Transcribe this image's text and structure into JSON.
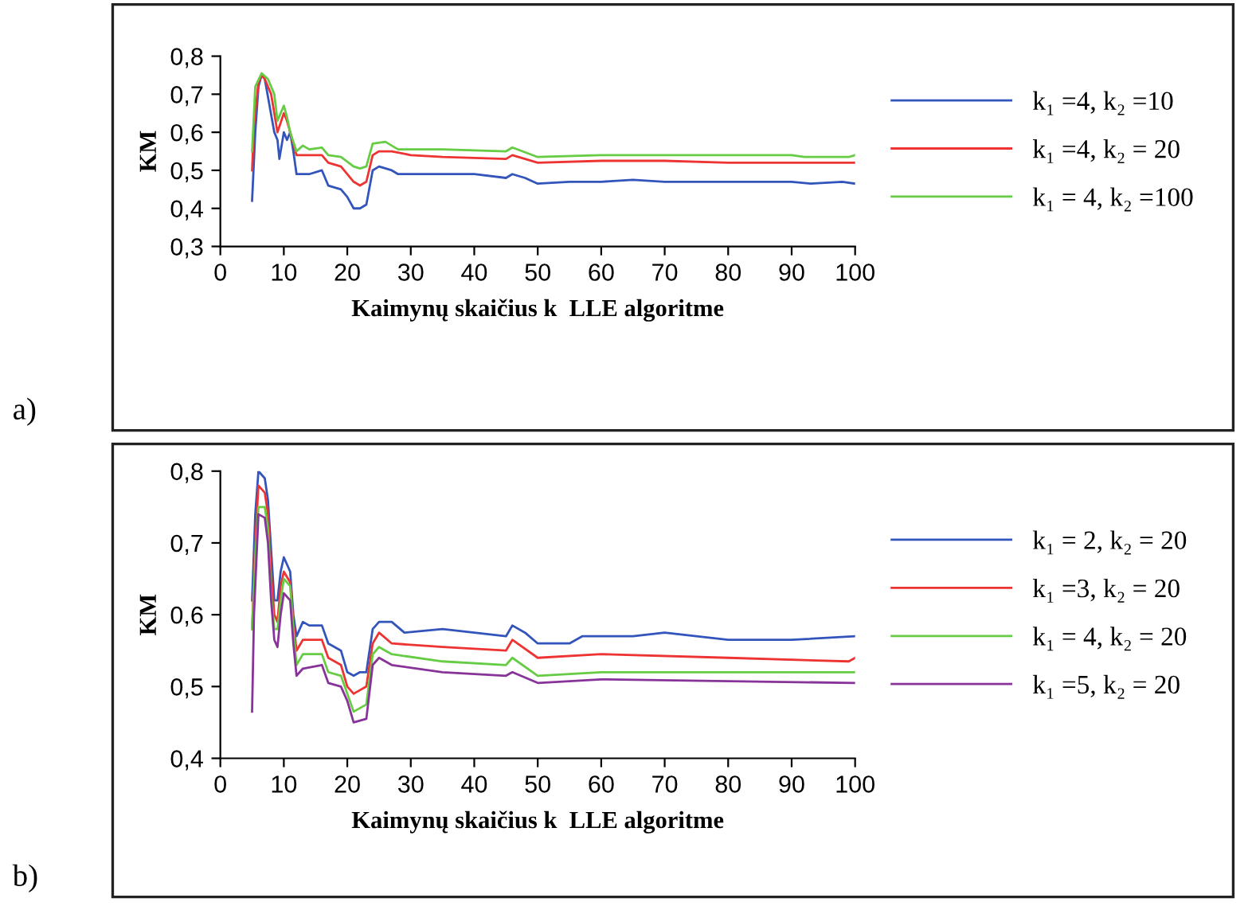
{
  "chart_data": [
    {
      "type": "line",
      "xlabel": "Kaimynų skaičius k  LLE algoritme",
      "ylabel": "KM",
      "annotations": [
        "a)"
      ],
      "legend": "right",
      "grid": false,
      "xlim": [
        0,
        100
      ],
      "xticks": [
        0,
        10,
        20,
        30,
        40,
        50,
        60,
        70,
        80,
        90,
        100
      ],
      "ylim": [
        0.3,
        0.8
      ],
      "yticks": [
        {
          "value": 0.3,
          "label": "0,3"
        },
        {
          "value": 0.4,
          "label": "0,4"
        },
        {
          "value": 0.5,
          "label": "0,5"
        },
        {
          "value": 0.6,
          "label": "0,6"
        },
        {
          "value": 0.7,
          "label": "0,7"
        },
        {
          "value": 0.8,
          "label": "0,8"
        }
      ],
      "series": [
        {
          "name": "k₁ =4, k₂ =10",
          "color": "#3355bb",
          "x": [
            5,
            5.5,
            6,
            6.5,
            7,
            8.5,
            9,
            9.3,
            10,
            10.5,
            11,
            11.5,
            12,
            13,
            14,
            16,
            17,
            19,
            20,
            21,
            22,
            23,
            24,
            25,
            27,
            28,
            35,
            40,
            45,
            46,
            48,
            50,
            55,
            60,
            65,
            70,
            80,
            90,
            93,
            98,
            100
          ],
          "values": [
            0.42,
            0.6,
            0.72,
            0.75,
            0.74,
            0.6,
            0.58,
            0.53,
            0.6,
            0.58,
            0.6,
            0.55,
            0.49,
            0.49,
            0.49,
            0.5,
            0.46,
            0.45,
            0.43,
            0.4,
            0.4,
            0.41,
            0.5,
            0.51,
            0.5,
            0.49,
            0.49,
            0.49,
            0.48,
            0.49,
            0.48,
            0.465,
            0.47,
            0.47,
            0.475,
            0.47,
            0.47,
            0.47,
            0.465,
            0.47,
            0.465
          ]
        },
        {
          "name": "k₁ =4, k₂ = 20",
          "color": "#ee3333",
          "x": [
            5,
            5.3,
            6,
            6.5,
            7,
            8,
            8.5,
            9,
            10,
            10.5,
            11,
            12,
            13,
            16,
            17,
            19,
            21,
            22,
            23,
            24,
            25,
            27,
            30,
            35,
            45,
            46,
            50,
            60,
            70,
            80,
            100
          ],
          "values": [
            0.5,
            0.62,
            0.73,
            0.75,
            0.74,
            0.7,
            0.65,
            0.6,
            0.65,
            0.63,
            0.6,
            0.54,
            0.54,
            0.54,
            0.52,
            0.51,
            0.47,
            0.46,
            0.47,
            0.54,
            0.55,
            0.55,
            0.54,
            0.535,
            0.53,
            0.54,
            0.52,
            0.525,
            0.525,
            0.52,
            0.52
          ]
        },
        {
          "name": "k₁ = 4, k₂ =100",
          "color": "#66cc44",
          "x": [
            5,
            5.5,
            6.5,
            7.5,
            8.5,
            9,
            10,
            10.5,
            11,
            12,
            13,
            14,
            16,
            17,
            19,
            21,
            22,
            23,
            24,
            26,
            28,
            35,
            45,
            46,
            50,
            60,
            90,
            92,
            99,
            100
          ],
          "values": [
            0.55,
            0.72,
            0.755,
            0.74,
            0.7,
            0.63,
            0.67,
            0.64,
            0.6,
            0.55,
            0.565,
            0.555,
            0.56,
            0.54,
            0.535,
            0.51,
            0.505,
            0.51,
            0.57,
            0.575,
            0.555,
            0.555,
            0.55,
            0.56,
            0.535,
            0.54,
            0.54,
            0.535,
            0.535,
            0.54
          ]
        }
      ]
    },
    {
      "type": "line",
      "xlabel": "Kaimynų skaičius k  LLE algoritme",
      "ylabel": "KM",
      "annotations": [
        "b)"
      ],
      "legend": "right",
      "grid": false,
      "xlim": [
        0,
        100
      ],
      "xticks": [
        0,
        10,
        20,
        30,
        40,
        50,
        60,
        70,
        80,
        90,
        100
      ],
      "ylim": [
        0.4,
        0.8
      ],
      "yticks": [
        {
          "value": 0.4,
          "label": "0,4"
        },
        {
          "value": 0.5,
          "label": "0,5"
        },
        {
          "value": 0.6,
          "label": "0,6"
        },
        {
          "value": 0.7,
          "label": "0,7"
        },
        {
          "value": 0.8,
          "label": "0,8"
        }
      ],
      "series": [
        {
          "name": "k₁ = 2, k₂ = 20",
          "color": "#3355bb",
          "x": [
            5,
            5.5,
            6,
            7,
            7.5,
            8,
            8.5,
            9,
            9.5,
            10,
            11,
            11.5,
            12,
            13,
            14,
            16,
            17,
            19,
            20,
            21,
            22,
            23,
            24,
            25,
            27,
            29,
            35,
            40,
            45,
            46,
            48,
            50,
            55,
            57,
            65,
            70,
            80,
            90,
            100
          ],
          "values": [
            0.62,
            0.74,
            0.8,
            0.79,
            0.76,
            0.69,
            0.62,
            0.62,
            0.66,
            0.68,
            0.66,
            0.6,
            0.57,
            0.59,
            0.585,
            0.585,
            0.56,
            0.55,
            0.52,
            0.515,
            0.52,
            0.52,
            0.58,
            0.59,
            0.59,
            0.575,
            0.58,
            0.575,
            0.57,
            0.585,
            0.575,
            0.56,
            0.56,
            0.57,
            0.57,
            0.575,
            0.565,
            0.565,
            0.57
          ]
        },
        {
          "name": "k₁ =3, k₂ = 20",
          "color": "#ee3333",
          "x": [
            5,
            5.5,
            6,
            7,
            7.5,
            8,
            8.5,
            9,
            9.5,
            10,
            11,
            11.5,
            12,
            13,
            16,
            17,
            19,
            20,
            21,
            23,
            24,
            25,
            27,
            35,
            45,
            46,
            50,
            60,
            80,
            99,
            100
          ],
          "values": [
            0.58,
            0.7,
            0.78,
            0.77,
            0.74,
            0.66,
            0.6,
            0.59,
            0.64,
            0.66,
            0.645,
            0.59,
            0.55,
            0.565,
            0.565,
            0.54,
            0.53,
            0.5,
            0.49,
            0.5,
            0.56,
            0.575,
            0.56,
            0.555,
            0.55,
            0.565,
            0.54,
            0.545,
            0.54,
            0.535,
            0.54
          ]
        },
        {
          "name": "k₁ = 4, k₂ = 20",
          "color": "#66cc44",
          "x": [
            5,
            5.5,
            6,
            7,
            7.5,
            8,
            8.5,
            9,
            9.5,
            10,
            11,
            11.5,
            12,
            13,
            16,
            17,
            19,
            20,
            21,
            23,
            24,
            25,
            27,
            35,
            45,
            46,
            50,
            60,
            100
          ],
          "values": [
            0.58,
            0.68,
            0.75,
            0.75,
            0.72,
            0.63,
            0.58,
            0.58,
            0.62,
            0.65,
            0.64,
            0.58,
            0.53,
            0.545,
            0.545,
            0.52,
            0.515,
            0.49,
            0.465,
            0.475,
            0.545,
            0.555,
            0.545,
            0.535,
            0.53,
            0.54,
            0.515,
            0.52,
            0.52
          ]
        },
        {
          "name": "k₁ =5, k₂ = 20",
          "color": "#883399",
          "x": [
            5,
            5.3,
            6,
            7,
            7.5,
            8,
            8.5,
            9,
            9.5,
            10,
            11,
            11.5,
            12,
            13,
            16,
            17,
            19,
            20,
            21,
            23,
            24,
            25,
            27,
            35,
            45,
            46,
            50,
            60,
            100
          ],
          "values": [
            0.465,
            0.6,
            0.74,
            0.735,
            0.7,
            0.62,
            0.565,
            0.555,
            0.6,
            0.63,
            0.62,
            0.56,
            0.515,
            0.525,
            0.53,
            0.505,
            0.5,
            0.48,
            0.45,
            0.455,
            0.53,
            0.54,
            0.53,
            0.52,
            0.515,
            0.52,
            0.505,
            0.51,
            0.505
          ]
        }
      ]
    }
  ]
}
